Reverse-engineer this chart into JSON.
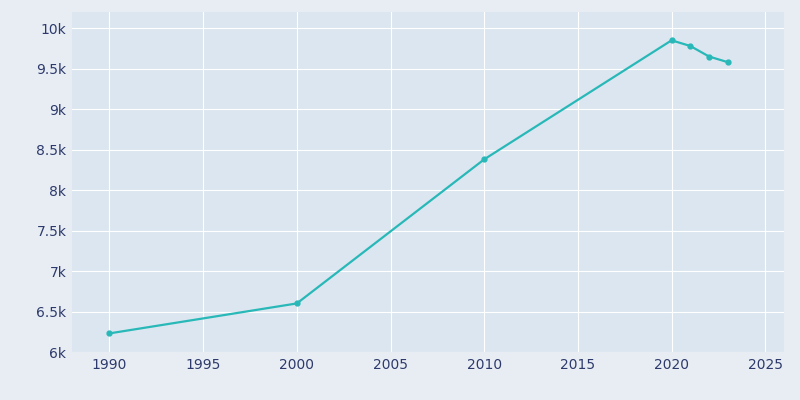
{
  "years": [
    1990,
    2000,
    2010,
    2020,
    2021,
    2022,
    2023
  ],
  "population": [
    6230,
    6600,
    8380,
    9850,
    9780,
    9650,
    9580
  ],
  "line_color": "#29b8b8",
  "marker_color": "#29b8b8",
  "figure_background": "#e8edf4",
  "plot_background": "#dce6f0",
  "grid_color": "#ffffff",
  "tick_label_color": "#2d3a6b",
  "xlim": [
    1988,
    2026
  ],
  "ylim": [
    6000,
    10200
  ],
  "xticks": [
    1990,
    1995,
    2000,
    2005,
    2010,
    2015,
    2020,
    2025
  ],
  "yticks": [
    6000,
    6500,
    7000,
    7500,
    8000,
    8500,
    9000,
    9500,
    10000
  ],
  "ytick_labels": [
    "6k",
    "6.5k",
    "7k",
    "7.5k",
    "8k",
    "8.5k",
    "9k",
    "9.5k",
    "10k"
  ],
  "linewidth": 1.6,
  "markersize": 3.5
}
